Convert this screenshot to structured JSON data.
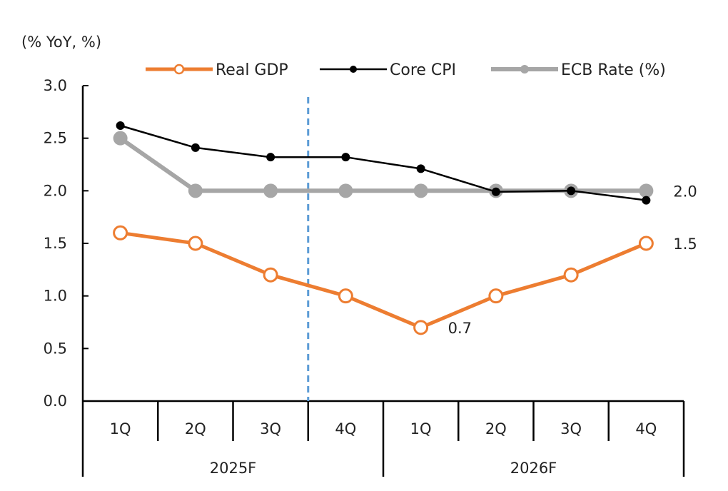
{
  "chart_data": {
    "type": "line",
    "unit_label": "(% YoY, %)",
    "ylim": [
      0,
      3
    ],
    "yticks": [
      "0.0",
      "0.5",
      "1.0",
      "1.5",
      "2.0",
      "2.5",
      "3.0"
    ],
    "categories": [
      "1Q",
      "2Q",
      "3Q",
      "4Q",
      "1Q",
      "2Q",
      "3Q",
      "4Q"
    ],
    "groups": [
      {
        "label": "2025F",
        "span": 4
      },
      {
        "label": "2026F",
        "span": 4
      }
    ],
    "forecast_divider_after_index": 2,
    "series": [
      {
        "name": "Real GDP",
        "color": "#ED7D31",
        "marker": "open-circle",
        "values": [
          1.6,
          1.5,
          1.2,
          1.0,
          0.7,
          1.0,
          1.2,
          1.5
        ]
      },
      {
        "name": "Core CPI",
        "color": "#000000",
        "marker": "filled-dot",
        "values": [
          2.62,
          2.41,
          2.32,
          2.32,
          2.21,
          1.99,
          2.0,
          1.91
        ]
      },
      {
        "name": "ECB Rate (%)",
        "color": "#A6A6A6",
        "marker": "filled-circle",
        "values": [
          2.5,
          2.0,
          2.0,
          2.0,
          2.0,
          2.0,
          2.0,
          2.0
        ]
      }
    ],
    "data_labels": [
      {
        "series": "Real GDP",
        "index": 4,
        "text": "0.7"
      },
      {
        "series": "Real GDP",
        "index": 7,
        "text": "1.5"
      },
      {
        "series": "ECB Rate (%)",
        "index": 7,
        "text": "2.0"
      }
    ],
    "divider_color": "#5B9BD5"
  }
}
